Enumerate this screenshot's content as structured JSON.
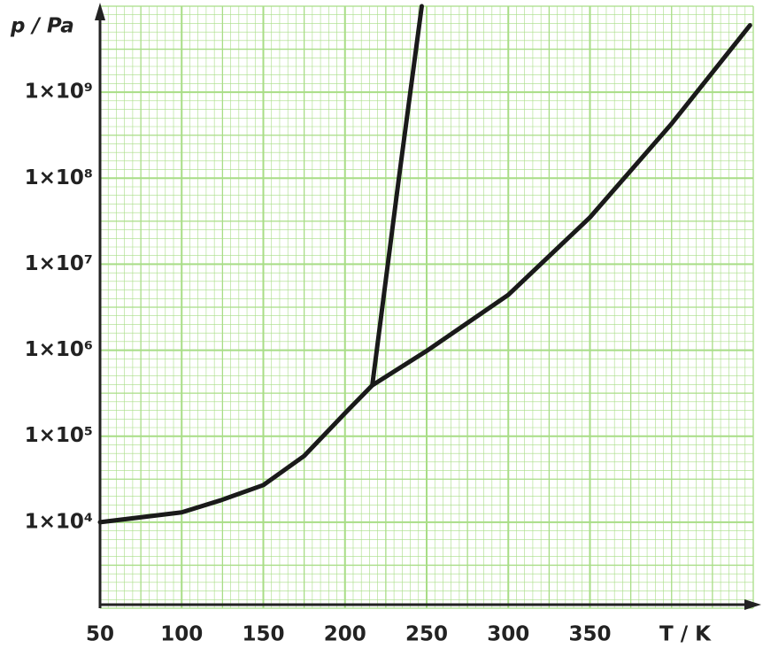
{
  "chart_data": {
    "type": "line",
    "yscale": "log",
    "grid": true,
    "color_grid": "#a8dd86",
    "x_label": "T / K",
    "y_label": "p / Pa",
    "xlim": [
      50,
      450
    ],
    "xticks": [
      50,
      100,
      150,
      200,
      250,
      300,
      350
    ],
    "ylim": [
      1000,
      10000000000
    ],
    "yticks": [
      {
        "value": 10000,
        "label": "1×10⁴"
      },
      {
        "value": 100000,
        "label": "1×10⁵"
      },
      {
        "value": 1000000,
        "label": "1×10⁶"
      },
      {
        "value": 10000000,
        "label": "1×10⁷"
      },
      {
        "value": 100000000,
        "label": "1×10⁸"
      },
      {
        "value": 1000000000,
        "label": "1×10⁹"
      }
    ],
    "series": [
      {
        "color": "#1a1a1a",
        "x": [
          50,
          100,
          124,
          150,
          175,
          200,
          216.7,
          250,
          300,
          350,
          400,
          448
        ],
        "values": [
          10000,
          13000,
          18000,
          27000,
          59000,
          185000,
          390000,
          980000,
          4400000,
          35000000,
          430000000,
          6000000000
        ]
      },
      {
        "color": "#1a1a1a",
        "x": [
          216.7,
          233,
          247
        ],
        "values": [
          390000,
          100000000,
          10000000000
        ]
      }
    ]
  }
}
